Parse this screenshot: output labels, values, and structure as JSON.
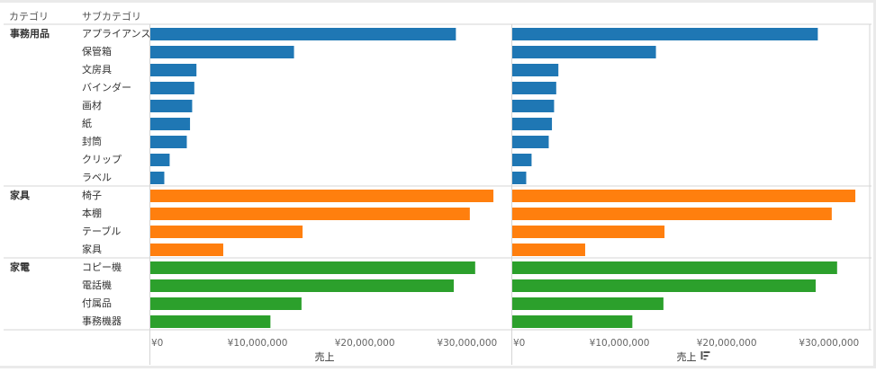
{
  "header": {
    "category_label": "カテゴリ",
    "subcategory_label": "サブカテゴリ"
  },
  "chart_data": {
    "type": "bar",
    "orientation": "horizontal",
    "panels": 2,
    "xlim": [
      0,
      32500000
    ],
    "xticks": [
      0,
      10000000,
      20000000,
      30000000
    ],
    "xtick_labels": [
      "¥0",
      "¥10,000,000",
      "¥20,000,000",
      "¥30,000,000"
    ],
    "xlabel": "売上",
    "grid": false,
    "groups": [
      {
        "category": "事務用品",
        "color": "#1f77b4",
        "items": [
          {
            "subcategory": "アプライアンス",
            "values": [
              28500000,
              28500000
            ]
          },
          {
            "subcategory": "保管箱",
            "values": [
              13400000,
              13400000
            ]
          },
          {
            "subcategory": "文房具",
            "values": [
              4300000,
              4300000
            ]
          },
          {
            "subcategory": "バインダー",
            "values": [
              4100000,
              4100000
            ]
          },
          {
            "subcategory": "画材",
            "values": [
              3900000,
              3900000
            ]
          },
          {
            "subcategory": "紙",
            "values": [
              3700000,
              3700000
            ]
          },
          {
            "subcategory": "封筒",
            "values": [
              3400000,
              3400000
            ]
          },
          {
            "subcategory": "クリップ",
            "values": [
              1800000,
              1800000
            ]
          },
          {
            "subcategory": "ラベル",
            "values": [
              1300000,
              1300000
            ]
          }
        ]
      },
      {
        "category": "家具",
        "color": "#ff7f0e",
        "items": [
          {
            "subcategory": "椅子",
            "values": [
              32000000,
              32000000
            ]
          },
          {
            "subcategory": "本棚",
            "values": [
              29800000,
              29800000
            ]
          },
          {
            "subcategory": "テーブル",
            "values": [
              14200000,
              14200000
            ]
          },
          {
            "subcategory": "家具",
            "values": [
              6800000,
              6800000
            ]
          }
        ]
      },
      {
        "category": "家電",
        "color": "#2ca02c",
        "items": [
          {
            "subcategory": "コピー機",
            "values": [
              30300000,
              30300000
            ]
          },
          {
            "subcategory": "電話機",
            "values": [
              28300000,
              28300000
            ]
          },
          {
            "subcategory": "付属品",
            "values": [
              14100000,
              14100000
            ]
          },
          {
            "subcategory": "事務機器",
            "values": [
              11200000,
              11200000
            ]
          }
        ]
      }
    ],
    "sort_icon": "sort-descending-icon"
  }
}
